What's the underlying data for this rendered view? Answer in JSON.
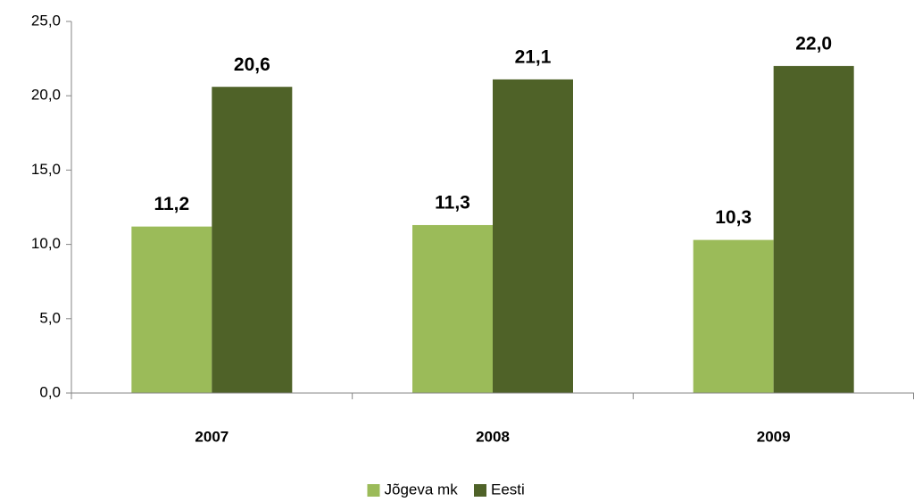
{
  "chart_data": {
    "type": "bar",
    "categories": [
      "2007",
      "2008",
      "2009"
    ],
    "series": [
      {
        "name": "Jõgeva mk",
        "color": "#9bbb59",
        "values": [
          11.2,
          11.3,
          10.3
        ],
        "value_labels": [
          "11,2",
          "11,3",
          "10,3"
        ]
      },
      {
        "name": "Eesti",
        "color": "#4f6228",
        "values": [
          20.6,
          21.1,
          22.0
        ],
        "value_labels": [
          "20,6",
          "21,1",
          "22,0"
        ]
      }
    ],
    "ylim": [
      0,
      25
    ],
    "yticks": [
      {
        "value": 0,
        "label": "0,0"
      },
      {
        "value": 5,
        "label": "5,0"
      },
      {
        "value": 10,
        "label": "10,0"
      },
      {
        "value": 15,
        "label": "15,0"
      },
      {
        "value": 20,
        "label": "20,0"
      },
      {
        "value": 25,
        "label": "25,0"
      }
    ],
    "legend": "bottom"
  }
}
